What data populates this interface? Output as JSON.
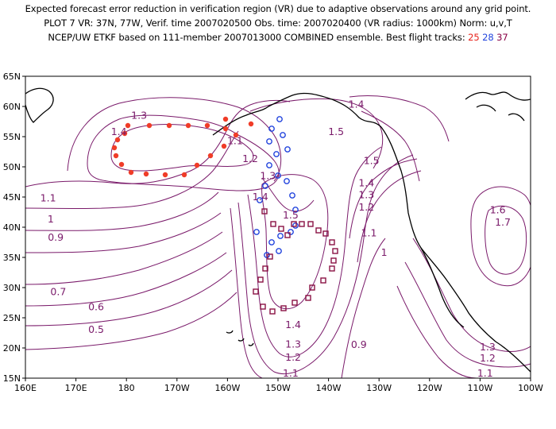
{
  "header": {
    "line1": "Expected forecast error reduction in verification region (VR) due to adaptive observations around any grid point.",
    "line2": "PLOT 7 VR: 37N, 77W, Verif. time 2007020500 Obs. time: 2007020400 (VR radius: 1000km) Norm: u,v,T",
    "line3_prefix": "NCEP/UW ETKF based on 111-member 2007013000 COMBINED ensemble.  Best flight tracks: ",
    "track_red": "25",
    "track_blue": "28",
    "track_purple": "37"
  },
  "map": {
    "x_ticks": [
      "160E",
      "170E",
      "180",
      "170W",
      "160W",
      "150W",
      "140W",
      "130W",
      "120W",
      "110W",
      "100W"
    ],
    "y_ticks": [
      "65N",
      "60N",
      "55N",
      "50N",
      "45N",
      "40N",
      "35N",
      "30N",
      "25N",
      "20N",
      "15N"
    ],
    "contour_labels": [
      {
        "text": "1.3",
        "lon": 182.5,
        "lat": 58.5
      },
      {
        "text": "1.4",
        "lon": 178.5,
        "lat": 55.8
      },
      {
        "text": "1.1",
        "lon": 201.5,
        "lat": 54.3
      },
      {
        "text": "1.2",
        "lon": 204.5,
        "lat": 51.3
      },
      {
        "text": "1.3",
        "lon": 208.0,
        "lat": 48.5
      },
      {
        "text": "1.4",
        "lon": 206.5,
        "lat": 45.0
      },
      {
        "text": "1.5",
        "lon": 212.5,
        "lat": 42.0
      },
      {
        "text": "1.4",
        "lon": 225.5,
        "lat": 60.3
      },
      {
        "text": "1.5",
        "lon": 221.5,
        "lat": 55.8
      },
      {
        "text": "1.5",
        "lon": 228.5,
        "lat": 51.0
      },
      {
        "text": "1.4",
        "lon": 227.5,
        "lat": 47.3
      },
      {
        "text": "1.3",
        "lon": 227.5,
        "lat": 45.3
      },
      {
        "text": "1.2",
        "lon": 227.5,
        "lat": 43.3
      },
      {
        "text": "1.1",
        "lon": 228.0,
        "lat": 39.0
      },
      {
        "text": "1",
        "lon": 231.0,
        "lat": 35.8
      },
      {
        "text": "1.6",
        "lon": 253.5,
        "lat": 42.8
      },
      {
        "text": "1.7",
        "lon": 254.5,
        "lat": 40.8
      },
      {
        "text": "1.1",
        "lon": 164.5,
        "lat": 44.8
      },
      {
        "text": "1",
        "lon": 165.0,
        "lat": 41.3
      },
      {
        "text": "0.9",
        "lon": 166.0,
        "lat": 38.3
      },
      {
        "text": "0.7",
        "lon": 166.5,
        "lat": 29.3
      },
      {
        "text": "0.6",
        "lon": 174.0,
        "lat": 26.8
      },
      {
        "text": "0.5",
        "lon": 174.0,
        "lat": 23.0
      },
      {
        "text": "1.4",
        "lon": 213.0,
        "lat": 23.8
      },
      {
        "text": "1.3",
        "lon": 213.0,
        "lat": 20.6
      },
      {
        "text": "1.2",
        "lon": 213.0,
        "lat": 18.4
      },
      {
        "text": "1.1",
        "lon": 212.5,
        "lat": 15.8
      },
      {
        "text": "0.9",
        "lon": 226.0,
        "lat": 20.5
      },
      {
        "text": "1.3",
        "lon": 251.5,
        "lat": 20.1
      },
      {
        "text": "1.2",
        "lon": 251.5,
        "lat": 18.3
      },
      {
        "text": "1.1",
        "lon": 251.0,
        "lat": 15.8
      }
    ],
    "colors": {
      "contour": "#7a1a6a",
      "coast": "#000000",
      "track_red": "#f03c28",
      "track_blue": "#2244dd",
      "track_purple": "#8a1244"
    }
  }
}
